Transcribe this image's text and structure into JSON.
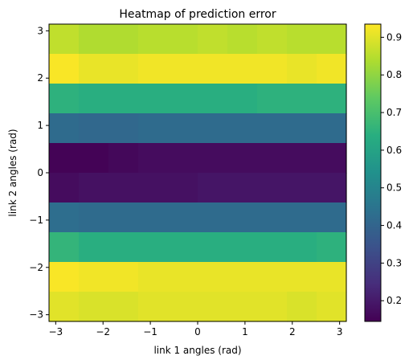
{
  "chart_data": {
    "type": "heatmap",
    "title": "Heatmap of prediction error",
    "xlabel": "link 1 angles (rad)",
    "ylabel": "link 2 angles (rad)",
    "xlim": [
      -3.14159,
      3.14159
    ],
    "ylim": [
      -3.14159,
      3.14159
    ],
    "x_ticks": [
      -3,
      -2,
      -1,
      0,
      1,
      2,
      3
    ],
    "x_tick_labels": [
      "−3",
      "−2",
      "−1",
      "0",
      "1",
      "2",
      "3"
    ],
    "y_ticks": [
      -3,
      -2,
      -1,
      0,
      1,
      2,
      3
    ],
    "y_tick_labels": [
      "−3",
      "−2",
      "−1",
      "0",
      "1",
      "2",
      "3"
    ],
    "grid": false,
    "colormap": "viridis",
    "colorbar": {
      "vmin": 0.145,
      "vmax": 0.935,
      "ticks": [
        0.2,
        0.3,
        0.4,
        0.5,
        0.6,
        0.7,
        0.8,
        0.9
      ],
      "tick_labels": [
        "0.2",
        "0.3",
        "0.4",
        "0.5",
        "0.6",
        "0.7",
        "0.8",
        "0.9"
      ]
    },
    "rows_top_to_bottom": [
      [
        0.86,
        0.84,
        0.84,
        0.85,
        0.85,
        0.86,
        0.85,
        0.86,
        0.85,
        0.85
      ],
      [
        0.93,
        0.91,
        0.91,
        0.92,
        0.92,
        0.92,
        0.92,
        0.92,
        0.91,
        0.92
      ],
      [
        0.65,
        0.64,
        0.64,
        0.64,
        0.64,
        0.64,
        0.64,
        0.65,
        0.65,
        0.65
      ],
      [
        0.42,
        0.41,
        0.41,
        0.42,
        0.42,
        0.42,
        0.42,
        0.42,
        0.42,
        0.42
      ],
      [
        0.15,
        0.15,
        0.16,
        0.17,
        0.17,
        0.17,
        0.17,
        0.17,
        0.17,
        0.17
      ],
      [
        0.17,
        0.18,
        0.18,
        0.18,
        0.18,
        0.19,
        0.19,
        0.19,
        0.19,
        0.19
      ],
      [
        0.43,
        0.42,
        0.42,
        0.42,
        0.42,
        0.42,
        0.42,
        0.42,
        0.42,
        0.42
      ],
      [
        0.66,
        0.64,
        0.64,
        0.64,
        0.64,
        0.64,
        0.64,
        0.64,
        0.64,
        0.65
      ],
      [
        0.93,
        0.92,
        0.92,
        0.91,
        0.91,
        0.91,
        0.91,
        0.91,
        0.91,
        0.91
      ],
      [
        0.9,
        0.89,
        0.89,
        0.9,
        0.9,
        0.9,
        0.9,
        0.9,
        0.89,
        0.9
      ]
    ]
  }
}
